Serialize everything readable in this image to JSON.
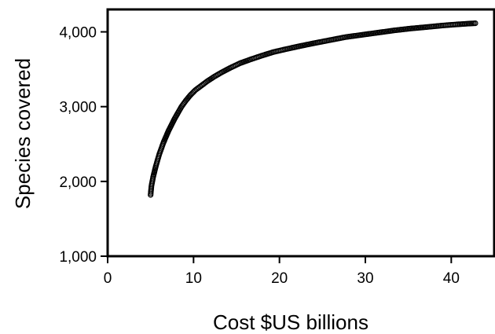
{
  "chart_data": {
    "type": "scatter",
    "xlabel": "Cost $US billions",
    "ylabel": "Species covered",
    "xlim": [
      0,
      45
    ],
    "ylim": [
      1000,
      4300
    ],
    "x_ticks": [
      0,
      10,
      20,
      30,
      40
    ],
    "x_tick_labels": [
      "0",
      "10",
      "20",
      "30",
      "40"
    ],
    "y_ticks": [
      1000,
      2000,
      3000,
      4000
    ],
    "y_tick_labels": [
      "1,000",
      "2,000",
      "3,000",
      "4,000"
    ],
    "grid": false,
    "marker": "open-circle",
    "marker_color": "#000000",
    "series": [
      {
        "points": [
          [
            5.0,
            1820
          ],
          [
            5.05,
            1880
          ],
          [
            5.1,
            1940
          ],
          [
            5.2,
            2000
          ],
          [
            5.3,
            2060
          ],
          [
            5.45,
            2130
          ],
          [
            5.6,
            2200
          ],
          [
            5.8,
            2280
          ],
          [
            6.0,
            2360
          ],
          [
            6.25,
            2440
          ],
          [
            6.5,
            2520
          ],
          [
            6.8,
            2600
          ],
          [
            7.1,
            2680
          ],
          [
            7.45,
            2760
          ],
          [
            7.8,
            2840
          ],
          [
            8.2,
            2920
          ],
          [
            8.6,
            3000
          ],
          [
            9.1,
            3080
          ],
          [
            9.6,
            3150
          ],
          [
            10.2,
            3220
          ],
          [
            10.9,
            3280
          ],
          [
            11.6,
            3340
          ],
          [
            12.4,
            3400
          ],
          [
            13.3,
            3460
          ],
          [
            14.3,
            3520
          ],
          [
            15.4,
            3580
          ],
          [
            16.6,
            3630
          ],
          [
            17.9,
            3680
          ],
          [
            19.3,
            3730
          ],
          [
            20.8,
            3770
          ],
          [
            22.4,
            3810
          ],
          [
            24.1,
            3850
          ],
          [
            25.9,
            3890
          ],
          [
            27.7,
            3930
          ],
          [
            29.6,
            3960
          ],
          [
            31.5,
            3990
          ],
          [
            33.4,
            4020
          ],
          [
            35.3,
            4045
          ],
          [
            37.2,
            4065
          ],
          [
            39.0,
            4085
          ],
          [
            40.7,
            4100
          ],
          [
            42.0,
            4110
          ],
          [
            42.8,
            4115
          ]
        ]
      }
    ]
  }
}
